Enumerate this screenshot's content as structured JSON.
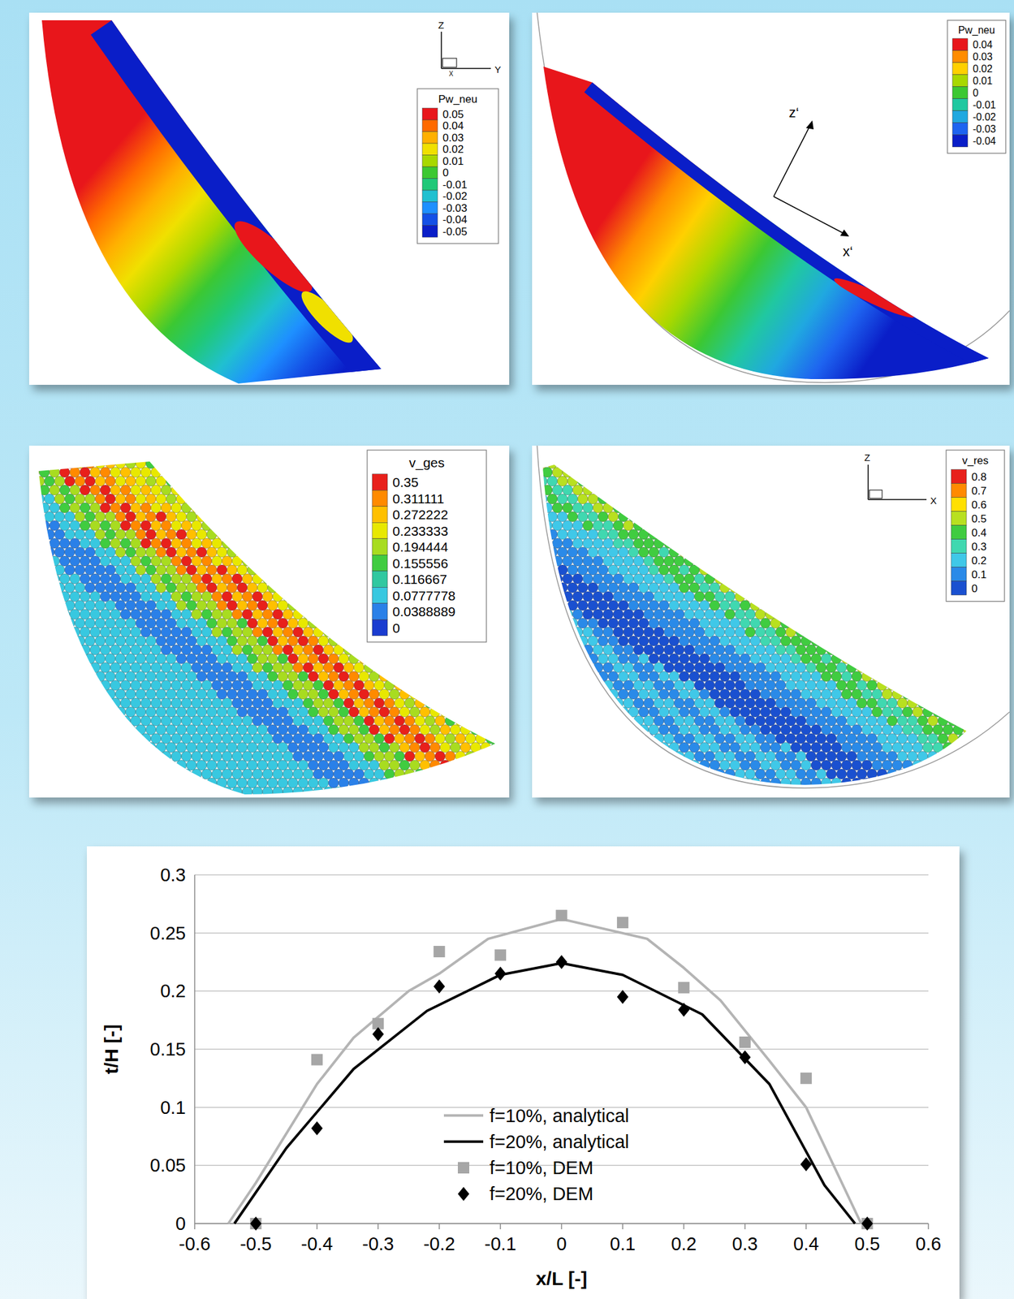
{
  "chart_data": {
    "type": "line",
    "xlabel": "x/L [-]",
    "ylabel": "t/H [-]",
    "xlim": [
      -0.6,
      0.6
    ],
    "xticks": [
      -0.6,
      -0.5,
      -0.4,
      -0.3,
      -0.2,
      -0.1,
      0,
      0.1,
      0.2,
      0.3,
      0.4,
      0.5,
      0.6
    ],
    "ylim": [
      0,
      0.3
    ],
    "yticks": [
      0,
      0.05,
      0.1,
      0.15,
      0.2,
      0.25,
      0.3
    ],
    "grid": true,
    "legend": "bottom",
    "series": [
      {
        "name": "f=10%, analytical",
        "type": "line",
        "color": "#b4b4b4",
        "line_style": "solid",
        "x": [
          -0.545,
          -0.5,
          -0.4,
          -0.34,
          -0.25,
          -0.2,
          -0.12,
          0,
          0.14,
          0.2,
          0.26,
          0.34,
          0.4,
          0.49
        ],
        "values": [
          0,
          0.035,
          0.12,
          0.16,
          0.2,
          0.215,
          0.245,
          0.262,
          0.245,
          0.22,
          0.192,
          0.14,
          0.1,
          0
        ]
      },
      {
        "name": "f=20%, analytical",
        "type": "line",
        "color": "#000000",
        "line_style": "solid",
        "x": [
          -0.535,
          -0.45,
          -0.34,
          -0.22,
          -0.1,
          0,
          0.1,
          0.23,
          0.34,
          0.43,
          0.48
        ],
        "values": [
          0,
          0.065,
          0.133,
          0.183,
          0.214,
          0.224,
          0.214,
          0.18,
          0.12,
          0.033,
          0
        ]
      },
      {
        "name": "f=10%, DEM",
        "type": "scatter",
        "color": "#a6a6a6",
        "marker": "square",
        "x": [
          -0.5,
          -0.4,
          -0.3,
          -0.2,
          -0.1,
          0,
          0.1,
          0.2,
          0.3,
          0.4,
          0.5
        ],
        "values": [
          0,
          0.141,
          0.172,
          0.234,
          0.231,
          0.265,
          0.259,
          0.203,
          0.156,
          0.125,
          0
        ]
      },
      {
        "name": "f=20%, DEM",
        "type": "scatter",
        "color": "#000000",
        "marker": "diamond",
        "x": [
          -0.5,
          -0.4,
          -0.3,
          -0.2,
          -0.1,
          0,
          0.1,
          0.2,
          0.3,
          0.4,
          0.5
        ],
        "values": [
          0,
          0.082,
          0.163,
          0.204,
          0.215,
          0.225,
          0.195,
          0.184,
          0.143,
          0.051,
          0
        ]
      }
    ]
  },
  "panels": [
    {
      "legend_title": "Pw_neu",
      "legend_values": [
        0.05,
        0.04,
        0.03,
        0.02,
        0.01,
        0,
        -0.01,
        -0.02,
        -0.03,
        -0.04,
        -0.05
      ],
      "colors": [
        "#e8161b",
        "#ff6a00",
        "#ffb000",
        "#f0e000",
        "#a8d800",
        "#3cc832",
        "#20c878",
        "#20c0d0",
        "#1e90ff",
        "#1450e6",
        "#0a1ec8"
      ],
      "axis_labels": [
        "Z",
        "Y",
        "X"
      ]
    },
    {
      "legend_title": "Pw_neu",
      "legend_values": [
        0.04,
        0.03,
        0.02,
        0.01,
        0,
        -0.01,
        -0.02,
        -0.03,
        -0.04
      ],
      "colors": [
        "#e8161b",
        "#ff8c00",
        "#ffd000",
        "#a8d800",
        "#3cc832",
        "#20c8a0",
        "#20a8e0",
        "#1e64f0",
        "#0a1ec8"
      ],
      "axis_labels": [
        "z‘",
        "x‘"
      ]
    },
    {
      "legend_title": "v_ges",
      "legend_values": [
        0.35,
        0.311111,
        0.272222,
        0.233333,
        0.194444,
        0.155556,
        0.116667,
        0.0777778,
        0.0388889,
        0
      ],
      "colors": [
        "#e8201b",
        "#ff8a00",
        "#ffc000",
        "#e8e800",
        "#a8dc20",
        "#40cc40",
        "#30c8a0",
        "#38c8e0",
        "#2a80e8",
        "#1a3cd0"
      ]
    },
    {
      "legend_title": "v_res",
      "legend_values": [
        0.8,
        0.7,
        0.6,
        0.5,
        0.4,
        0.3,
        0.2,
        0.1,
        0
      ],
      "colors": [
        "#e8201b",
        "#ff8a00",
        "#ffe000",
        "#b8e020",
        "#40cc40",
        "#40d8b0",
        "#40c8e8",
        "#2a8ae8",
        "#1a50d0"
      ],
      "axis_labels": [
        "Z",
        "X"
      ]
    }
  ]
}
